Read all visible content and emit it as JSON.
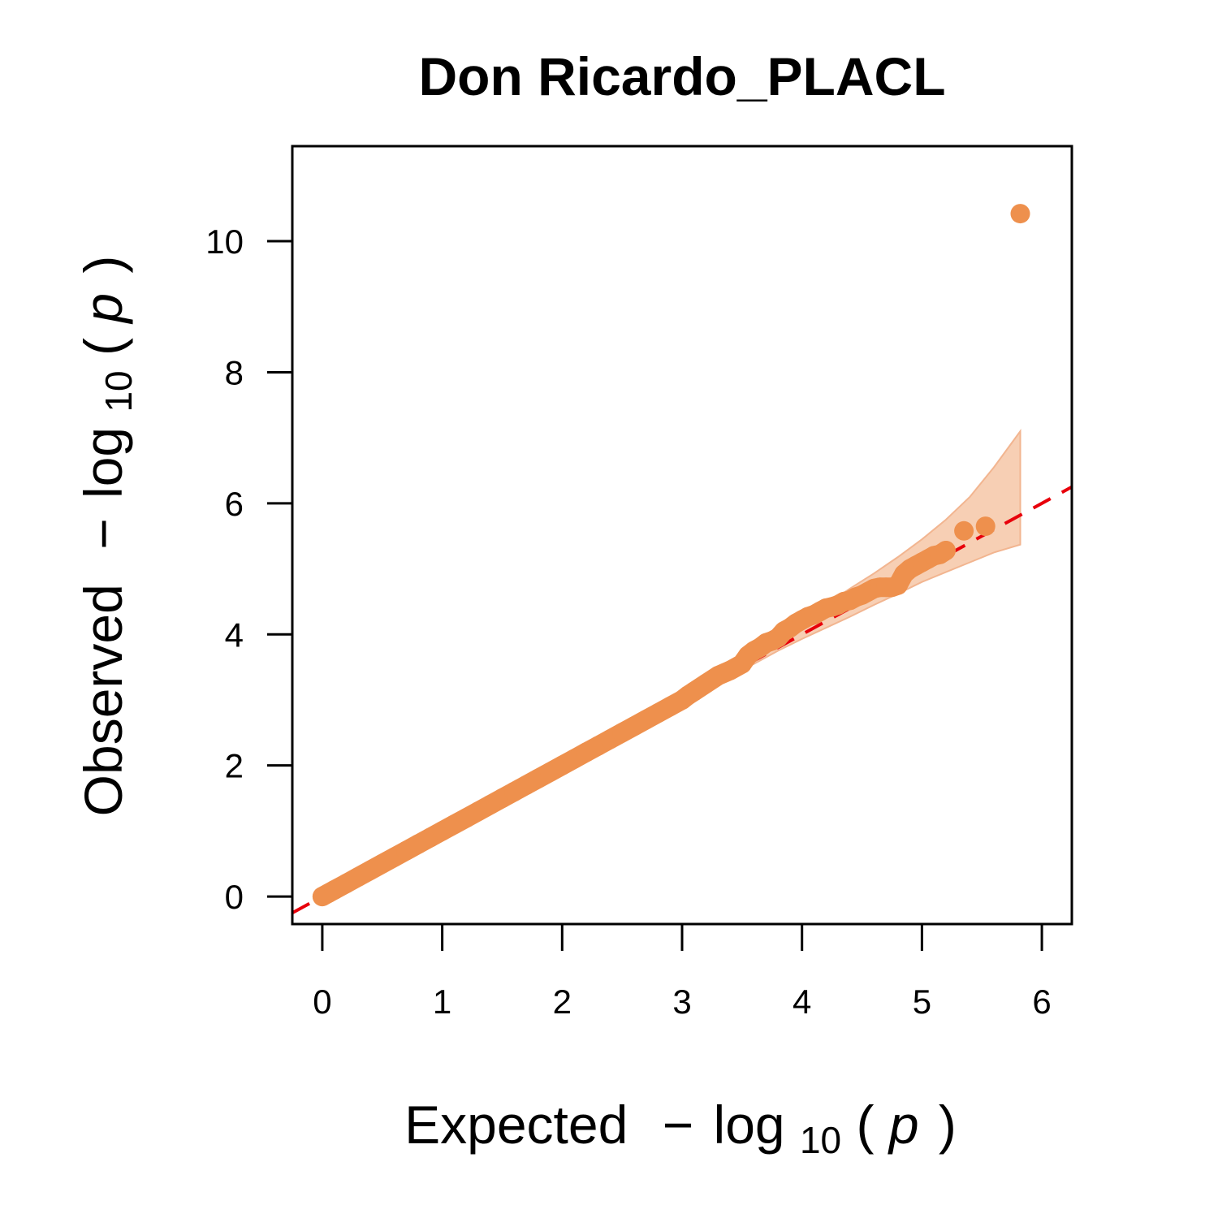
{
  "chart_data": {
    "type": "scatter",
    "title": "Don Ricardo_PLACL",
    "xlabel": {
      "prefix": "Expected",
      "minus": "−",
      "log": "log",
      "sub": "10",
      "open": "(",
      "var": "p",
      "close": ")"
    },
    "ylabel": {
      "prefix": "Observed",
      "minus": "−",
      "log": "log",
      "sub": "10",
      "open": "(",
      "var": "p",
      "close": ")"
    },
    "xlim": [
      -0.25,
      6.25
    ],
    "ylim": [
      -0.42,
      11.45
    ],
    "x_ticks": [
      0,
      1,
      2,
      3,
      4,
      5,
      6
    ],
    "x_tick_labels": [
      "0",
      "1",
      "2",
      "3",
      "4",
      "5",
      "6"
    ],
    "y_ticks": [
      0,
      2,
      4,
      6,
      8,
      10
    ],
    "y_tick_labels": [
      "0",
      "2",
      "4",
      "6",
      "8",
      "10"
    ],
    "grid": false,
    "legend": "none",
    "colors": {
      "points": "#EE904D",
      "band": "#F7CFB4",
      "band_edge": "#F2B590",
      "reference": "#E8000B",
      "axis": "#000000"
    },
    "reference_line": {
      "style": "dashed",
      "slope": 1,
      "intercept": 0
    },
    "confidence_band": {
      "x": [
        3.6,
        3.8,
        4.0,
        4.2,
        4.4,
        4.6,
        4.8,
        5.0,
        5.2,
        5.4,
        5.6,
        5.82
      ],
      "upper": [
        3.75,
        4.0,
        4.22,
        4.45,
        4.7,
        4.93,
        5.18,
        5.45,
        5.75,
        6.1,
        6.55,
        7.1
      ],
      "lower": [
        3.55,
        3.75,
        3.93,
        4.1,
        4.27,
        4.45,
        4.62,
        4.8,
        4.95,
        5.1,
        5.25,
        5.37
      ]
    },
    "series": [
      {
        "x": [
          0.0,
          0.05,
          0.1,
          0.2,
          0.3,
          0.4,
          0.5,
          0.6,
          0.7,
          0.8,
          0.9,
          1.0,
          1.1,
          1.2,
          1.3,
          1.4,
          1.5,
          1.6,
          1.7,
          1.8,
          1.9,
          2.0,
          2.1,
          2.2,
          2.3,
          2.4,
          2.5,
          2.6,
          2.7,
          2.8,
          2.9,
          3.0,
          3.05,
          3.1,
          3.2,
          3.3,
          3.4,
          3.5,
          3.55,
          3.6,
          3.65,
          3.7,
          3.75,
          3.8,
          3.85,
          3.9,
          3.95,
          4.0,
          4.05,
          4.1,
          4.15,
          4.2,
          4.25,
          4.3,
          4.35,
          4.4,
          4.45,
          4.5,
          4.55,
          4.6,
          4.65,
          4.7,
          4.75,
          4.8,
          4.85,
          4.9,
          4.95,
          5.0,
          5.05,
          5.1,
          5.15,
          5.2,
          5.35,
          5.53,
          5.82
        ],
        "y": [
          0.0,
          0.05,
          0.1,
          0.2,
          0.3,
          0.4,
          0.5,
          0.6,
          0.7,
          0.8,
          0.9,
          1.0,
          1.1,
          1.2,
          1.3,
          1.4,
          1.5,
          1.6,
          1.7,
          1.8,
          1.9,
          2.0,
          2.1,
          2.2,
          2.3,
          2.4,
          2.5,
          2.6,
          2.7,
          2.8,
          2.9,
          3.0,
          3.07,
          3.13,
          3.25,
          3.37,
          3.45,
          3.55,
          3.68,
          3.75,
          3.8,
          3.87,
          3.9,
          3.95,
          4.05,
          4.1,
          4.17,
          4.22,
          4.27,
          4.3,
          4.35,
          4.4,
          4.42,
          4.45,
          4.5,
          4.52,
          4.57,
          4.6,
          4.65,
          4.7,
          4.72,
          4.72,
          4.72,
          4.75,
          4.92,
          5.0,
          5.05,
          5.1,
          5.15,
          5.2,
          5.22,
          5.28,
          5.58,
          5.65,
          10.42
        ]
      }
    ]
  }
}
